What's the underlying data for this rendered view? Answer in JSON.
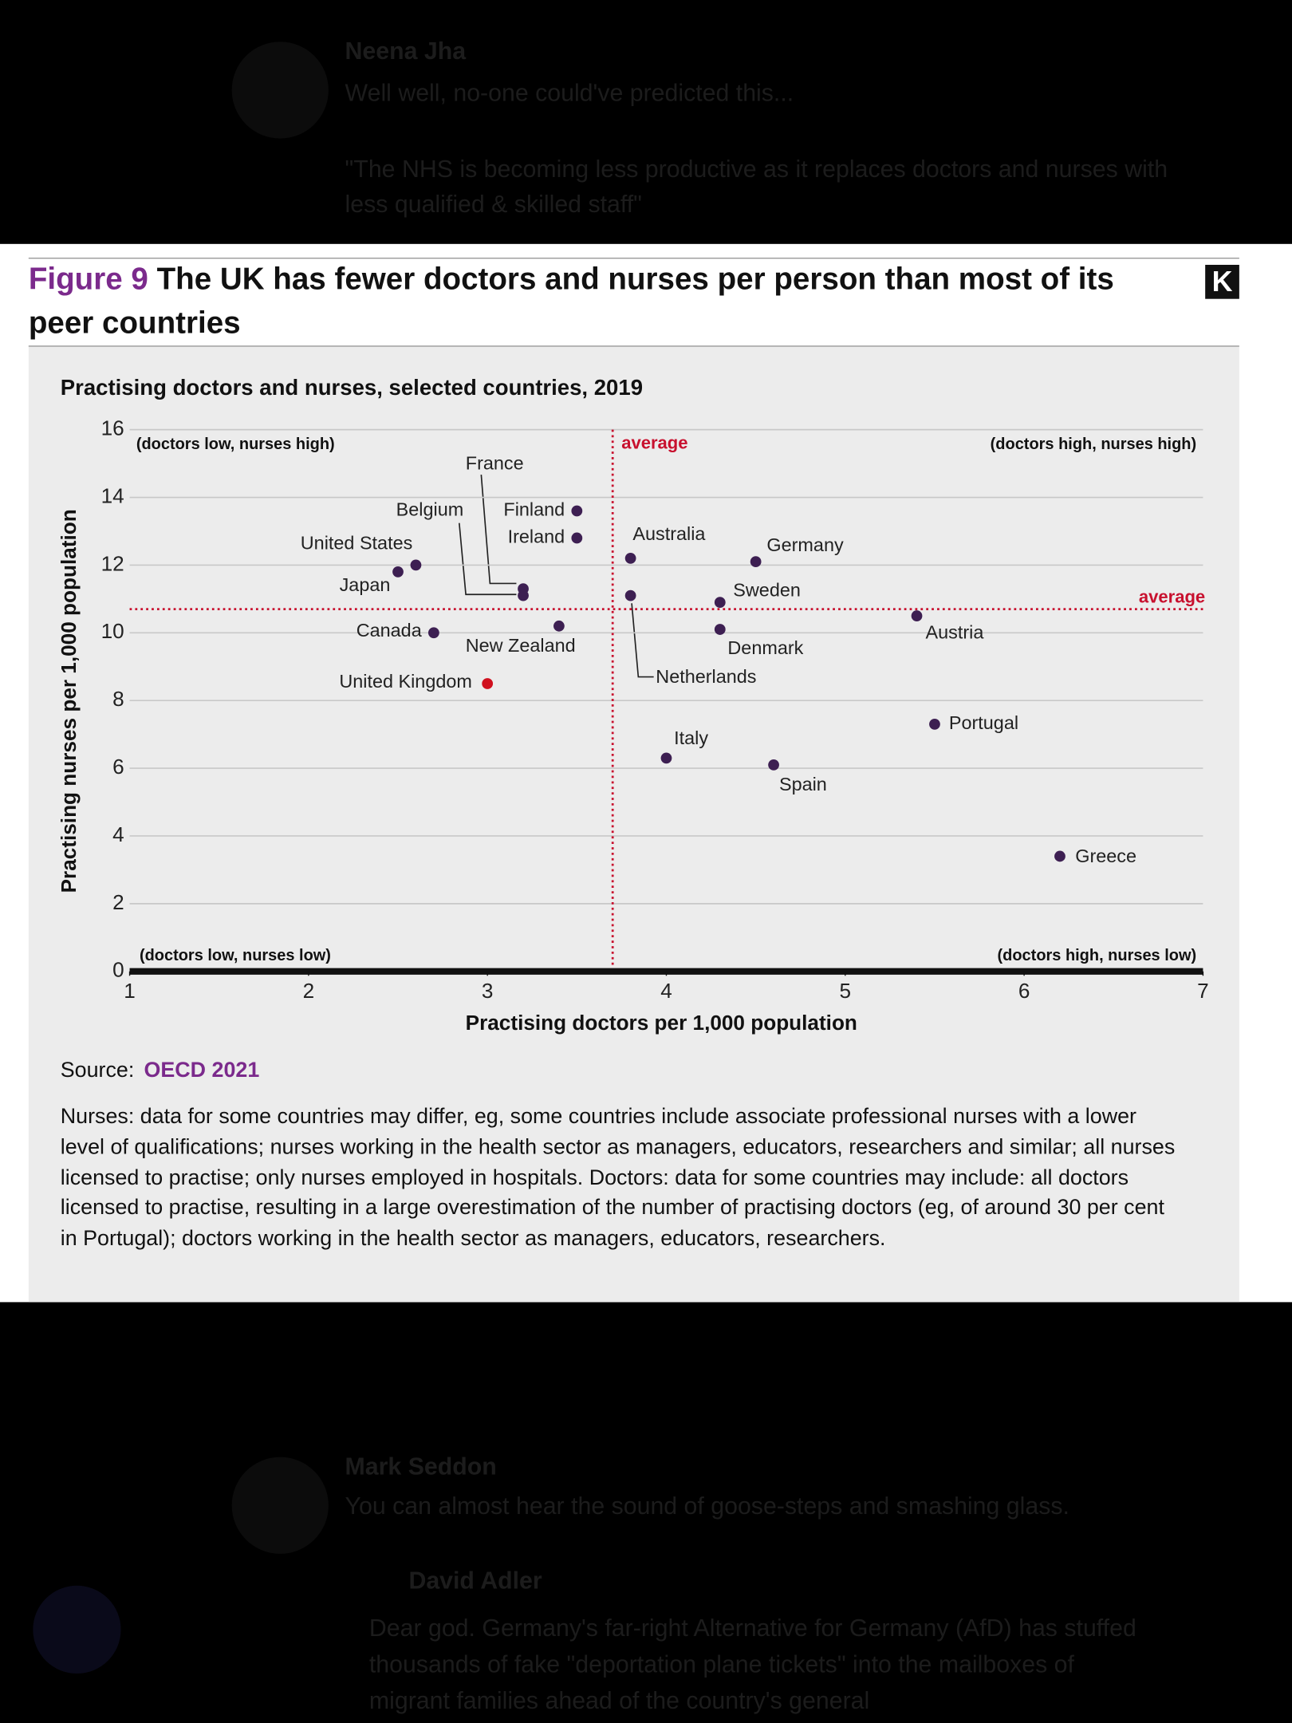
{
  "background": {
    "tweet1_author": "Neena Jha",
    "tweet1_text": "Well well, no-one could've predicted this...",
    "tweet1_quote": "\"The NHS is becoming less productive as it replaces doctors and nurses with less qualified & skilled staff\"",
    "tweet2_author": "Mark Seddon",
    "tweet2_text": "You can almost hear the sound of goose-steps and smashing glass.",
    "tweet3_author": "David Adler",
    "tweet3_text": "Dear god. Germany's far-right Alternative for Germany (AfD) has stuffed thousands of fake \"deportation plane tickets\" into the mailboxes of migrant families ahead of the country's general"
  },
  "figure": {
    "number": "Figure 9",
    "title": "The UK has fewer doctors and nurses per person than most of its peer countries",
    "logo": "K"
  },
  "chart_data": {
    "type": "scatter",
    "title": "Practising doctors and nurses, selected countries, 2019",
    "x_label": "Practising doctors per 1,000 population",
    "y_label": "Practising nurses per 1,000 population",
    "labels": [
      "Finland",
      "Ireland",
      "Australia",
      "Germany",
      "United States",
      "Japan",
      "France",
      "Belgium",
      "Netherlands",
      "Sweden",
      "Austria",
      "New Zealand",
      "Denmark",
      "Canada",
      "United Kingdom",
      "Portugal",
      "Italy",
      "Spain",
      "Greece"
    ],
    "x": [
      3.5,
      3.5,
      3.8,
      4.5,
      2.6,
      2.5,
      3.2,
      3.2,
      3.8,
      4.3,
      5.4,
      3.4,
      4.3,
      2.7,
      3.0,
      5.5,
      4.0,
      4.6,
      6.2
    ],
    "values": [
      13.6,
      12.8,
      12.2,
      12.1,
      12.0,
      11.8,
      11.3,
      11.1,
      11.1,
      10.9,
      10.5,
      10.2,
      10.1,
      10.0,
      8.5,
      7.3,
      6.3,
      6.1,
      3.4
    ],
    "colors": [
      "#3d1f52",
      "#3d1f52",
      "#3d1f52",
      "#3d1f52",
      "#3d1f52",
      "#3d1f52",
      "#3d1f52",
      "#3d1f52",
      "#3d1f52",
      "#3d1f52",
      "#3d1f52",
      "#3d1f52",
      "#3d1f52",
      "#3d1f52",
      "#d0101e",
      "#3d1f52",
      "#3d1f52",
      "#3d1f52",
      "#3d1f52"
    ],
    "x_average": {
      "value": 3.7,
      "label": "average"
    },
    "y_average": {
      "value": 10.7,
      "label": "average"
    },
    "quadrants": {
      "top_left": "(doctors low, nurses high)",
      "top_right": "(doctors high, nurses high)",
      "bottom_left": "(doctors low, nurses low)",
      "bottom_right": "(doctors high, nurses low)"
    },
    "xlim": [
      1,
      7
    ],
    "xticks": [
      1,
      2,
      3,
      4,
      5,
      6,
      7
    ],
    "ylim": [
      0,
      16
    ],
    "yticks": [
      0,
      2,
      4,
      6,
      8,
      10,
      12,
      14,
      16
    ],
    "grid": true
  },
  "source": {
    "prefix": "Source:",
    "name": "OECD 2021"
  },
  "note": "Nurses: data for some countries may differ, eg, some countries include associate professional nurses with a lower level of qualifications; nurses working in the health sector as managers, educators, researchers and similar; all nurses licensed to practise; only nurses employed in hospitals. Doctors: data for some countries may include: all doctors licensed to practise, resulting in a large overestimation of the number of practising doctors (eg, of around 30 per cent in Portugal); doctors working in the health sector as managers, educators, researchers."
}
